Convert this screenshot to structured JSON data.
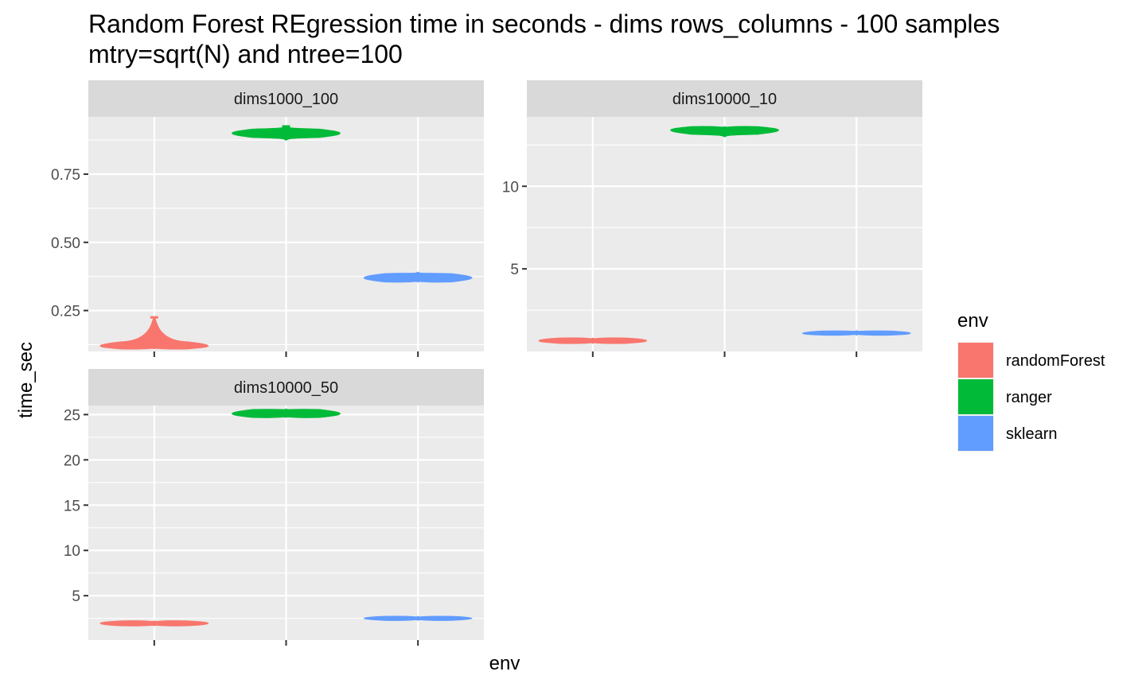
{
  "chart_data": {
    "type": "violin",
    "title": "Random Forest REgression time in seconds - dims rows_columns - 100 samples",
    "subtitle": "mtry=sqrt(N) and ntree=100",
    "xlabel": "env",
    "ylabel": "time_sec",
    "categories": [
      "randomForest",
      "ranger",
      "sklearn"
    ],
    "legend": {
      "title": "env",
      "position": "right",
      "entries": [
        {
          "label": "randomForest",
          "color": "#F8766D"
        },
        {
          "label": "ranger",
          "color": "#00BA38"
        },
        {
          "label": "sklearn",
          "color": "#619CFF"
        }
      ]
    },
    "scales": "free_y",
    "grid": true,
    "panels": [
      {
        "strip": "dims1000_100",
        "ylim": [
          0.1,
          0.96
        ],
        "yticks": [
          0.25,
          0.5,
          0.75
        ],
        "ytick_labels": [
          "0.25",
          "0.50",
          "0.75"
        ],
        "series": [
          {
            "env": "randomForest",
            "min": 0.11,
            "max": 0.225,
            "median": 0.12
          },
          {
            "env": "ranger",
            "min": 0.875,
            "max": 0.925,
            "median": 0.9
          },
          {
            "env": "sklearn",
            "min": 0.355,
            "max": 0.39,
            "median": 0.37
          }
        ]
      },
      {
        "strip": "dims10000_10",
        "ylim": [
          0.0,
          14.2
        ],
        "yticks": [
          5,
          10
        ],
        "ytick_labels": [
          "5",
          "10"
        ],
        "series": [
          {
            "env": "randomForest",
            "min": 0.5,
            "max": 0.8,
            "median": 0.65
          },
          {
            "env": "ranger",
            "min": 13.0,
            "max": 13.6,
            "median": 13.4
          },
          {
            "env": "sklearn",
            "min": 1.0,
            "max": 1.25,
            "median": 1.1
          }
        ]
      },
      {
        "strip": "dims10000_50",
        "ylim": [
          0.1,
          26.0
        ],
        "yticks": [
          5,
          10,
          15,
          20,
          25
        ],
        "ytick_labels": [
          "5",
          "10",
          "15",
          "20",
          "25"
        ],
        "series": [
          {
            "env": "randomForest",
            "min": 1.7,
            "max": 2.2,
            "median": 1.95
          },
          {
            "env": "ranger",
            "min": 24.7,
            "max": 25.6,
            "median": 25.1
          },
          {
            "env": "sklearn",
            "min": 2.3,
            "max": 2.7,
            "median": 2.5
          }
        ]
      }
    ]
  }
}
